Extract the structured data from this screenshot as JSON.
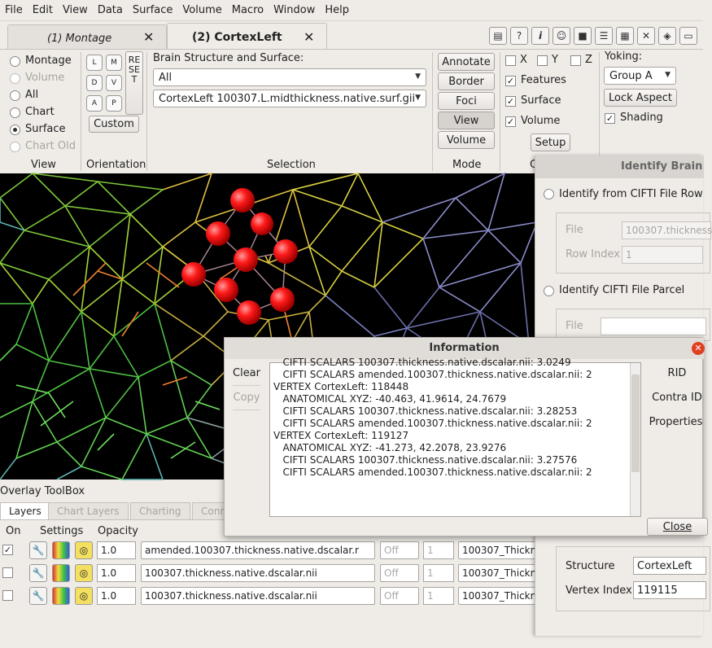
{
  "menu": [
    "File",
    "Edit",
    "View",
    "Data",
    "Surface",
    "Volume",
    "Macro",
    "Window",
    "Help"
  ],
  "tabs": [
    {
      "label": "(1) Montage",
      "active": false
    },
    {
      "label": "(2) CortexLeft",
      "active": true
    }
  ],
  "toolbar_icons": [
    "message-icon",
    "help-icon",
    "info-icon",
    "identify-icon",
    "movie-icon",
    "scene-icon",
    "clapper-icon",
    "tools-icon",
    "layers-icon",
    "toolbox-icon"
  ],
  "view_group": {
    "title": "View",
    "options": [
      {
        "label": "Montage",
        "state": "off"
      },
      {
        "label": "Volume",
        "state": "disabled"
      },
      {
        "label": "All",
        "state": "off"
      },
      {
        "label": "Chart",
        "state": "off"
      },
      {
        "label": "Surface",
        "state": "on"
      },
      {
        "label": "Chart Old",
        "state": "disabled"
      }
    ]
  },
  "orientation_group": {
    "title": "Orientation",
    "buttons": [
      "L",
      "M",
      "D",
      "V",
      "A",
      "P"
    ],
    "reset": "RESET",
    "custom": "Custom"
  },
  "selection_group": {
    "title": "Selection",
    "heading": "Brain Structure and Surface:",
    "structure": "All",
    "surface": "CortexLeft 100307.L.midthickness.native.surf.gii"
  },
  "mode_group": {
    "title": "Mode",
    "buttons": [
      "Annotate",
      "Border",
      "Foci",
      "View",
      "Volume"
    ],
    "pressed": "View"
  },
  "clip_group": {
    "title": "C",
    "axes": [
      "X",
      "Y",
      "Z"
    ],
    "items": [
      {
        "label": "Features",
        "checked": true
      },
      {
        "label": "Surface",
        "checked": true
      },
      {
        "label": "Volume",
        "checked": true
      }
    ],
    "setup": "Setup"
  },
  "yoking_group": {
    "title": "Yoking:",
    "group": "Group A",
    "lock_aspect": "Lock Aspect",
    "shading": "Shading",
    "shading_checked": true
  },
  "overlay": {
    "title": "Overlay ToolBox",
    "tabs": [
      {
        "label": "Layers",
        "active": true
      },
      {
        "label": "Chart Layers",
        "active": false
      },
      {
        "label": "Charting",
        "active": false
      },
      {
        "label": "Conn",
        "active": false
      }
    ],
    "headers": {
      "on": "On",
      "settings": "Settings",
      "opacity": "Opacity"
    },
    "rows": [
      {
        "checked": true,
        "opacity": "1.0",
        "file": "amended.100307.thickness.native.dscalar.r",
        "mode": "Off",
        "index": "1",
        "map": "100307_Thickn"
      },
      {
        "checked": false,
        "opacity": "1.0",
        "file": "100307.thickness.native.dscalar.nii",
        "mode": "Off",
        "index": "1",
        "map": "100307_Thickn"
      },
      {
        "checked": false,
        "opacity": "1.0",
        "file": "100307.thickness.native.dscalar.nii",
        "mode": "Off",
        "index": "1",
        "map": "100307_Thickn"
      }
    ]
  },
  "identify_panel": {
    "title": "Identify Brain",
    "opt1": "Identify from CIFTI File Row",
    "file_label": "File",
    "file_value": "100307.thickness",
    "row_label": "Row Index",
    "row_value": "1",
    "opt2": "Identify CIFTI File Parcel",
    "file2_label": "File",
    "structure_label": "Structure",
    "structure_value": "CortexLeft",
    "vertex_label": "Vertex Index",
    "vertex_value": "119115"
  },
  "info_dialog": {
    "title": "Information",
    "clear": "Clear",
    "copy": "Copy",
    "side_buttons": [
      "RID",
      "Contra ID",
      "Properties"
    ],
    "close": "Close",
    "lines": [
      "   CIFTI SCALARS 100307.thickness.native.dscalar.nii: 3.0249",
      "   CIFTI SCALARS amended.100307.thickness.native.dscalar.nii: 2",
      "",
      "VERTEX CortexLeft: 118448",
      "   ANATOMICAL XYZ: -40.463, 41.9614, 24.7679",
      "   CIFTI SCALARS 100307.thickness.native.dscalar.nii: 3.28253",
      "   CIFTI SCALARS amended.100307.thickness.native.dscalar.nii: 2",
      "",
      "VERTEX CortexLeft: 119127",
      "   ANATOMICAL XYZ: -41.273, 42.2078, 23.9276",
      "   CIFTI SCALARS 100307.thickness.native.dscalar.nii: 3.27576",
      "   CIFTI SCALARS amended.100307.thickness.native.dscalar.nii: 2"
    ]
  },
  "colors": {
    "accent": "#3d7de0",
    "highlight": "#ff1a1a",
    "window_bg": "#efebe7"
  }
}
